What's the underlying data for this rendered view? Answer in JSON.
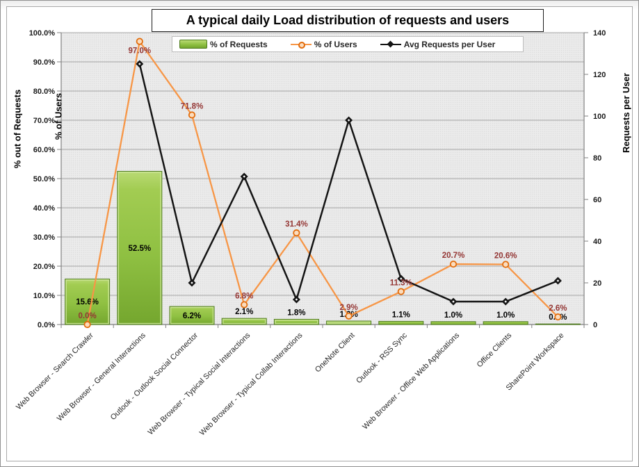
{
  "title": "A typical daily Load distribution of requests and users",
  "legend": {
    "items": [
      {
        "label": "% of Requests",
        "swatch": "bar-green"
      },
      {
        "label": "% of Users",
        "swatch": "line-circle-orange"
      },
      {
        "label": "Avg Requests per User",
        "swatch": "line-diamond-black"
      }
    ]
  },
  "axes": {
    "left_title_primary": "% out of Requests",
    "left_title_secondary": "% of Users",
    "right_title": "Requests  per  User",
    "left_ticks": [
      "100.0%",
      "90.0%",
      "80.0%",
      "70.0%",
      "60.0%",
      "50.0%",
      "40.0%",
      "30.0%",
      "20.0%",
      "10.0%",
      "0.0%"
    ],
    "right_ticks": [
      "140",
      "120",
      "100",
      "80",
      "60",
      "40",
      "20",
      "0"
    ]
  },
  "colors": {
    "bar_fill_top": "#b9da74",
    "bar_fill_mid": "#8fc042",
    "bar_fill_bottom": "#74a62e",
    "bar_stroke": "#4e7a1e",
    "bar_bevel": "#cfe79b",
    "users_line": "#f79646",
    "users_marker_stroke": "#e26b0a",
    "users_marker_fill": "#fbdcbd",
    "users_label": "#943634",
    "avg_line": "#141414",
    "plot_bg": "#ebebeb",
    "plot_dot": "#dcdcdc",
    "gridline": "#a6a6a6",
    "axis_line": "#7f7f7f",
    "bar_label": "#000000",
    "category_label": "#262626"
  },
  "chart_data": {
    "type": "combo-bar-line",
    "title": "A typical daily Load distribution of requests and users",
    "categories": [
      "Web Browser - Search Crawler",
      "Web Browser - General Interactions",
      "Outlook - Outlook Social Connector",
      "Web Browser - Typical Social Interactions",
      "Web Browser - Typical Collab Interactions",
      "OneNote Client",
      "Outlook - RSS Sync",
      "Web Browser - Office Web Applications",
      "Office Clients",
      "SharePoint Workspace"
    ],
    "series": [
      {
        "name": "% of Requests",
        "type": "bar",
        "axis": "left",
        "unit": "%",
        "values": [
          15.6,
          52.5,
          6.2,
          2.1,
          1.8,
          1.2,
          1.1,
          1.0,
          1.0,
          0.2
        ],
        "labels": [
          "15.6%",
          "52.5%",
          "6.2%",
          "2.1%",
          "1.8%",
          "1.2%",
          "1.1%",
          "1.0%",
          "1.0%",
          "0.2%"
        ]
      },
      {
        "name": "% of Users",
        "type": "line",
        "marker": "circle",
        "axis": "left",
        "unit": "%",
        "values": [
          0.0,
          97.0,
          71.8,
          6.8,
          31.4,
          2.9,
          11.3,
          20.7,
          20.6,
          2.6
        ],
        "labels": [
          "0.0%",
          "97.0%",
          "71.8%",
          "6.8%",
          "31.4%",
          "2.9%",
          "11.3%",
          "20.7%",
          "20.6%",
          "2.6%"
        ]
      },
      {
        "name": "Avg Requests per User",
        "type": "line",
        "marker": "diamond",
        "axis": "right",
        "values": [
          null,
          125,
          20,
          71,
          12,
          98,
          22,
          11,
          11,
          21
        ],
        "values_estimated": true,
        "labels": []
      }
    ],
    "left_axis": {
      "title": "% out of Requests / % of Users",
      "min": 0,
      "max": 100,
      "step": 10,
      "format": "percent"
    },
    "right_axis": {
      "title": "Requests per User",
      "min": 0,
      "max": 140,
      "step": 20
    },
    "grid": true,
    "legend_position": "top-inside",
    "x_label_rotation": 45
  }
}
